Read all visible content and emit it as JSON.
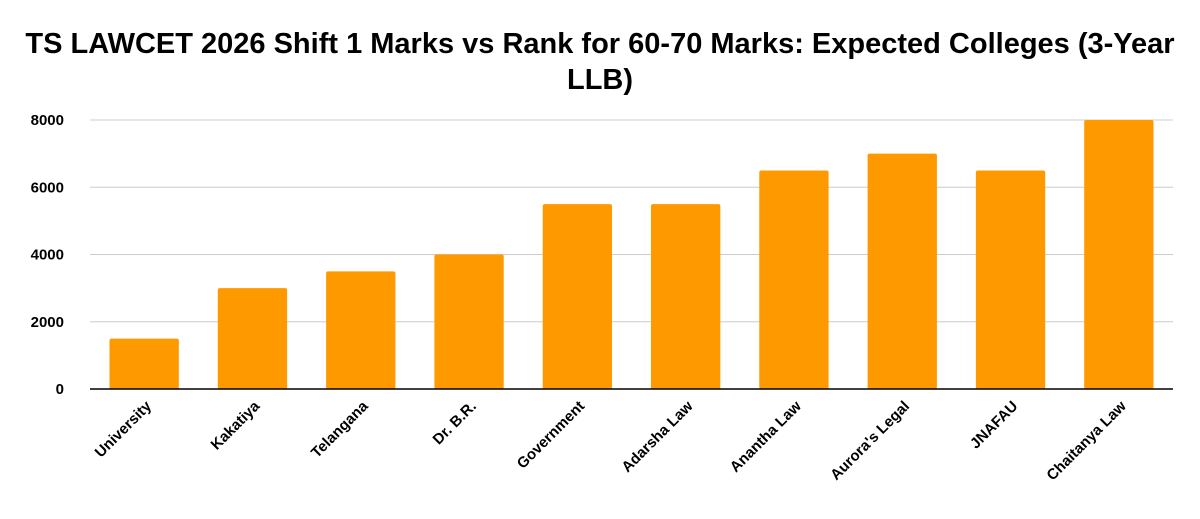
{
  "chart_data": {
    "type": "bar",
    "title": "TS LAWCET 2026 Shift 1 Marks vs Rank for 60-70 Marks: Expected Colleges (3-Year LLB)",
    "xlabel": "",
    "ylabel": "",
    "categories": [
      "University",
      "Kakatiya",
      "Telangana",
      "Dr. B.R.",
      "Government",
      "Adarsha Law",
      "Anantha Law",
      "Aurora's Legal",
      "JNAFAU",
      "Chaitanya Law"
    ],
    "values": [
      1500,
      3000,
      3500,
      4000,
      5500,
      5500,
      6500,
      7000,
      6500,
      8000
    ],
    "ylim": [
      0,
      8000
    ],
    "yticks": [
      0,
      2000,
      4000,
      6000,
      8000
    ],
    "grid": true,
    "legend": "none",
    "bar_color": "#ff9900",
    "grid_color": "#cccccc",
    "axis_color": "#000000"
  }
}
